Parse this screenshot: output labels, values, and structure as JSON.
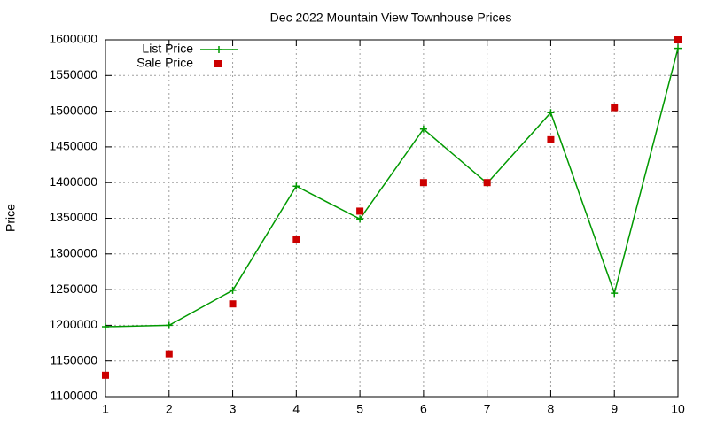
{
  "chart_data": {
    "type": "line",
    "title": "Dec 2022 Mountain View Townhouse Prices",
    "y_label": "Price",
    "x": [
      1,
      2,
      3,
      4,
      5,
      6,
      7,
      8,
      9,
      10
    ],
    "series": [
      {
        "name": "List Price",
        "color": "#009900",
        "style": "linepoints",
        "values": [
          1198000,
          1200000,
          1249000,
          1395000,
          1349000,
          1475000,
          1399000,
          1498000,
          1245000,
          1588000
        ]
      },
      {
        "name": "Sale Price",
        "color": "#cc0000",
        "style": "points",
        "values": [
          1130000,
          1160000,
          1230000,
          1320000,
          1360000,
          1400000,
          1400000,
          1460000,
          1505000,
          1600000
        ]
      }
    ],
    "xlim": [
      1,
      10
    ],
    "xticks": [
      1,
      2,
      3,
      4,
      5,
      6,
      7,
      8,
      9,
      10
    ],
    "ylim": [
      1100000,
      1600000
    ],
    "yticks": [
      1100000,
      1150000,
      1200000,
      1250000,
      1300000,
      1350000,
      1400000,
      1450000,
      1500000,
      1550000,
      1600000
    ],
    "grid": true,
    "legend": "top-left"
  }
}
